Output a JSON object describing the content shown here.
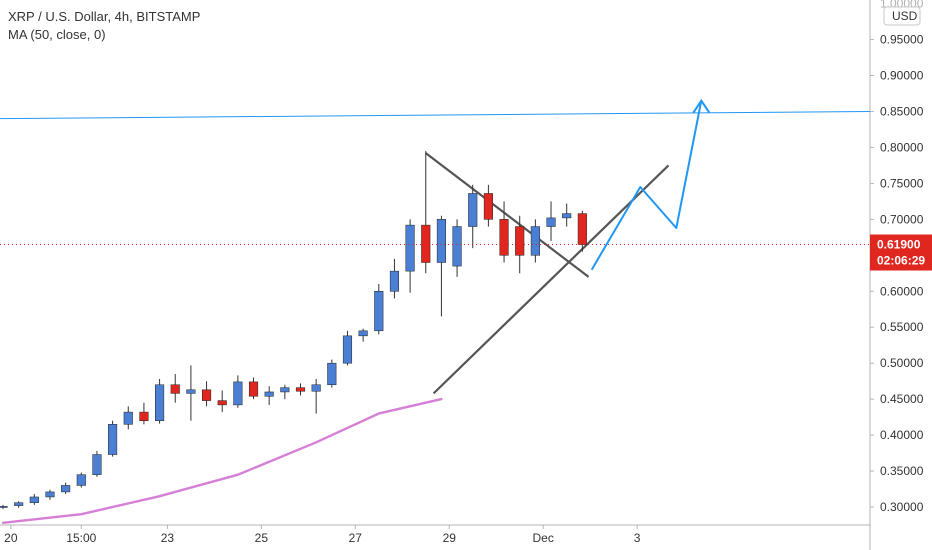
{
  "chart_data": {
    "type": "candlestick",
    "title": "XRP / U.S. Dollar, 4h, BITSTAMP",
    "indicator_label": "MA (50, close, 0)",
    "currency_label": "USD",
    "ylim": [
      0.275,
      1.005
    ],
    "y_ticks": [
      "0.30000",
      "0.35000",
      "0.40000",
      "0.45000",
      "0.50000",
      "0.55000",
      "0.60000",
      "0.65000",
      "0.70000",
      "0.75000",
      "0.80000",
      "0.85000",
      "0.90000",
      "0.95000"
    ],
    "top_tick_partial": "1.00000",
    "xlim": [
      0,
      38
    ],
    "x_ticks": [
      {
        "label": "20",
        "x": 0.5
      },
      {
        "label": "15:00",
        "x": 5
      },
      {
        "label": "23",
        "x": 10.5
      },
      {
        "label": "25",
        "x": 16.5
      },
      {
        "label": "27",
        "x": 22.5
      },
      {
        "label": "29",
        "x": 28.5
      },
      {
        "label": "Dec",
        "x": 34.5
      },
      {
        "label": "3",
        "x": 40.5
      }
    ],
    "candles": [
      {
        "x": 0,
        "o": 0.3,
        "h": 0.303,
        "l": 0.297,
        "c": 0.301
      },
      {
        "x": 1,
        "o": 0.302,
        "h": 0.308,
        "l": 0.299,
        "c": 0.306
      },
      {
        "x": 2,
        "o": 0.306,
        "h": 0.318,
        "l": 0.303,
        "c": 0.314
      },
      {
        "x": 3,
        "o": 0.314,
        "h": 0.324,
        "l": 0.31,
        "c": 0.321
      },
      {
        "x": 4,
        "o": 0.321,
        "h": 0.334,
        "l": 0.318,
        "c": 0.33
      },
      {
        "x": 5,
        "o": 0.33,
        "h": 0.348,
        "l": 0.327,
        "c": 0.345
      },
      {
        "x": 6,
        "o": 0.345,
        "h": 0.378,
        "l": 0.342,
        "c": 0.373
      },
      {
        "x": 7,
        "o": 0.373,
        "h": 0.42,
        "l": 0.37,
        "c": 0.415
      },
      {
        "x": 8,
        "o": 0.415,
        "h": 0.44,
        "l": 0.408,
        "c": 0.432
      },
      {
        "x": 9,
        "o": 0.432,
        "h": 0.445,
        "l": 0.415,
        "c": 0.42
      },
      {
        "x": 10,
        "o": 0.42,
        "h": 0.478,
        "l": 0.416,
        "c": 0.47
      },
      {
        "x": 11,
        "o": 0.47,
        "h": 0.485,
        "l": 0.445,
        "c": 0.458
      },
      {
        "x": 12,
        "o": 0.458,
        "h": 0.497,
        "l": 0.42,
        "c": 0.463
      },
      {
        "x": 13,
        "o": 0.463,
        "h": 0.475,
        "l": 0.44,
        "c": 0.448
      },
      {
        "x": 14,
        "o": 0.448,
        "h": 0.462,
        "l": 0.432,
        "c": 0.442
      },
      {
        "x": 15,
        "o": 0.442,
        "h": 0.483,
        "l": 0.438,
        "c": 0.474
      },
      {
        "x": 16,
        "o": 0.474,
        "h": 0.48,
        "l": 0.45,
        "c": 0.454
      },
      {
        "x": 17,
        "o": 0.454,
        "h": 0.468,
        "l": 0.442,
        "c": 0.46
      },
      {
        "x": 18,
        "o": 0.46,
        "h": 0.47,
        "l": 0.45,
        "c": 0.466
      },
      {
        "x": 19,
        "o": 0.466,
        "h": 0.472,
        "l": 0.455,
        "c": 0.461
      },
      {
        "x": 20,
        "o": 0.461,
        "h": 0.478,
        "l": 0.43,
        "c": 0.47
      },
      {
        "x": 21,
        "o": 0.47,
        "h": 0.505,
        "l": 0.466,
        "c": 0.5
      },
      {
        "x": 22,
        "o": 0.5,
        "h": 0.545,
        "l": 0.497,
        "c": 0.538
      },
      {
        "x": 23,
        "o": 0.538,
        "h": 0.548,
        "l": 0.53,
        "c": 0.545
      },
      {
        "x": 24,
        "o": 0.545,
        "h": 0.61,
        "l": 0.54,
        "c": 0.6
      },
      {
        "x": 25,
        "o": 0.6,
        "h": 0.645,
        "l": 0.59,
        "c": 0.628
      },
      {
        "x": 26,
        "o": 0.628,
        "h": 0.7,
        "l": 0.598,
        "c": 0.692
      },
      {
        "x": 27,
        "o": 0.692,
        "h": 0.795,
        "l": 0.625,
        "c": 0.64
      },
      {
        "x": 28,
        "o": 0.64,
        "h": 0.705,
        "l": 0.565,
        "c": 0.7
      },
      {
        "x": 29,
        "o": 0.635,
        "h": 0.7,
        "l": 0.62,
        "c": 0.69
      },
      {
        "x": 30,
        "o": 0.69,
        "h": 0.748,
        "l": 0.66,
        "c": 0.736
      },
      {
        "x": 31,
        "o": 0.736,
        "h": 0.748,
        "l": 0.69,
        "c": 0.7
      },
      {
        "x": 32,
        "o": 0.7,
        "h": 0.725,
        "l": 0.64,
        "c": 0.65
      },
      {
        "x": 33,
        "o": 0.69,
        "h": 0.705,
        "l": 0.625,
        "c": 0.65
      },
      {
        "x": 34,
        "o": 0.65,
        "h": 0.7,
        "l": 0.64,
        "c": 0.69
      },
      {
        "x": 35,
        "o": 0.69,
        "h": 0.725,
        "l": 0.67,
        "c": 0.702
      },
      {
        "x": 36,
        "o": 0.702,
        "h": 0.722,
        "l": 0.69,
        "c": 0.708
      },
      {
        "x": 37,
        "o": 0.708,
        "h": 0.712,
        "l": 0.655,
        "c": 0.665
      }
    ],
    "ma_points": [
      [
        0,
        0.278
      ],
      [
        5,
        0.29
      ],
      [
        10,
        0.315
      ],
      [
        15,
        0.345
      ],
      [
        20,
        0.39
      ],
      [
        24,
        0.43
      ],
      [
        28,
        0.45
      ]
    ]
  }
}
